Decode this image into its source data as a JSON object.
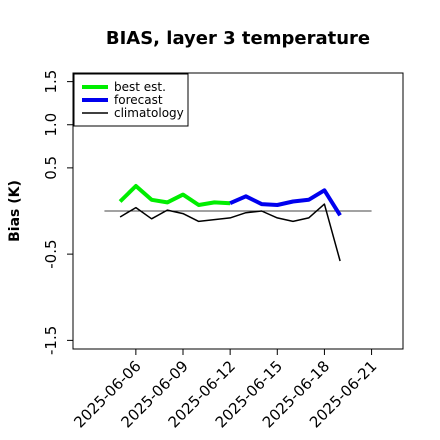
{
  "chart_data": {
    "type": "line",
    "title": "BIAS, layer 3 temperature",
    "xlabel": "",
    "ylabel": "Bias (K)",
    "x_ticks": [
      "2025-06-06",
      "2025-06-09",
      "2025-06-12",
      "2025-06-15",
      "2025-06-18",
      "2025-06-21"
    ],
    "highlighted_tick": "2025-06-12",
    "highlight_color": "#2e8b2e",
    "y_ticks": [
      -1.5,
      -0.5,
      0.5,
      1.0,
      1.5
    ],
    "y_tick_labels": [
      "-1.5",
      "-0.5",
      "0.5",
      "1.0",
      "1.5"
    ],
    "xlim": [
      "2025-06-02",
      "2025-06-23"
    ],
    "ylim": [
      -1.6,
      1.6
    ],
    "reference_line": 0,
    "legend_position": "top-left",
    "grid": false,
    "series": [
      {
        "name": "best est.",
        "color": "#00ee00",
        "x": [
          "2025-06-05",
          "2025-06-06",
          "2025-06-07",
          "2025-06-08",
          "2025-06-09",
          "2025-06-10",
          "2025-06-11",
          "2025-06-12"
        ],
        "y": [
          0.11,
          0.29,
          0.13,
          0.1,
          0.19,
          0.07,
          0.1,
          0.09
        ]
      },
      {
        "name": "forecast",
        "color": "#0000ee",
        "x": [
          "2025-06-12",
          "2025-06-13",
          "2025-06-14",
          "2025-06-15",
          "2025-06-16",
          "2025-06-17",
          "2025-06-18",
          "2025-06-19"
        ],
        "y": [
          0.09,
          0.17,
          0.08,
          0.07,
          0.11,
          0.13,
          0.24,
          -0.05
        ]
      },
      {
        "name": "climatology",
        "color": "#000000",
        "x": [
          "2025-06-05",
          "2025-06-06",
          "2025-06-07",
          "2025-06-08",
          "2025-06-09",
          "2025-06-10",
          "2025-06-11",
          "2025-06-12",
          "2025-06-13",
          "2025-06-14",
          "2025-06-15",
          "2025-06-16",
          "2025-06-17",
          "2025-06-18",
          "2025-06-19"
        ],
        "y": [
          -0.07,
          0.04,
          -0.09,
          0.01,
          -0.03,
          -0.12,
          -0.1,
          -0.08,
          -0.02,
          0.0,
          -0.08,
          -0.12,
          -0.08,
          0.08,
          -0.58
        ]
      }
    ]
  }
}
